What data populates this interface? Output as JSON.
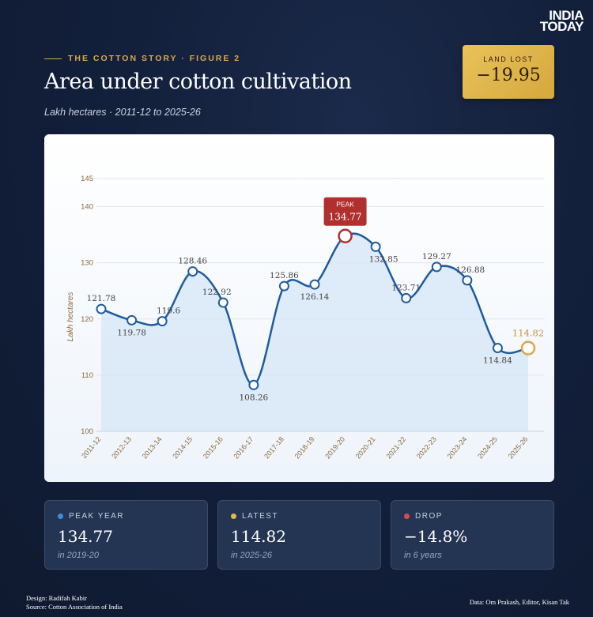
{
  "brand": {
    "line1": "INDIA",
    "line2": "TODAY"
  },
  "header": {
    "kicker": "THE COTTON STORY · FIGURE 2",
    "title": "Area under cotton cultivation",
    "subtitle": "Lakh hectares · 2011-12 to 2025-26"
  },
  "badge": {
    "label": "LAND LOST",
    "value": "−19.95"
  },
  "colors": {
    "line": "#1f5c9e",
    "area": "#d6e6f6",
    "gold": "#d9a84a",
    "peak": "#b0302e",
    "axis_text": "#8a6a3a",
    "label_text": "#444444",
    "grid": "#e2e6ec"
  },
  "chart_data": {
    "type": "line",
    "ylabel": "Lakh hectares",
    "xlabel": "",
    "ylim": [
      100,
      145
    ],
    "yticks": [
      100,
      110,
      120,
      130,
      140,
      145
    ],
    "grid": true,
    "categories": [
      "2011-12",
      "2012-13",
      "2013-14",
      "2014-15",
      "2015-16",
      "2016-17",
      "2017-18",
      "2018-19",
      "2019-20",
      "2020-21",
      "2021-22",
      "2022-23",
      "2023-24",
      "2024-25",
      "2025-26"
    ],
    "values": [
      121.78,
      119.78,
      119.6,
      128.46,
      122.92,
      108.26,
      125.86,
      126.14,
      134.77,
      132.85,
      123.71,
      129.27,
      126.88,
      114.84,
      114.82
    ],
    "data_labels": [
      "121.78",
      "119.78",
      "119.6",
      "128.46",
      "122.92",
      "108.26",
      "125.86",
      "126.14",
      "134.77",
      "132.85",
      "123.71",
      "129.27",
      "126.88",
      "114.84",
      "114.82"
    ],
    "peak_label": "PEAK",
    "peak_index": 8,
    "latest_index": 14
  },
  "stats": [
    {
      "label": "PEAK YEAR",
      "value": "134.77",
      "note": "in 2019-20",
      "dot": "#3a8de0"
    },
    {
      "label": "LATEST",
      "value": "114.82",
      "note": "in 2025-26",
      "dot": "#e8b84a"
    },
    {
      "label": "DROP",
      "value": "−14.8%",
      "note": "in 6 years",
      "dot": "#d94a4a"
    }
  ],
  "footer": {
    "design": "Design: Radifah Kabir",
    "source": "Source: Cotton Association of India",
    "data": "Data: Om Prakash, Editor, Kisan Tak"
  }
}
